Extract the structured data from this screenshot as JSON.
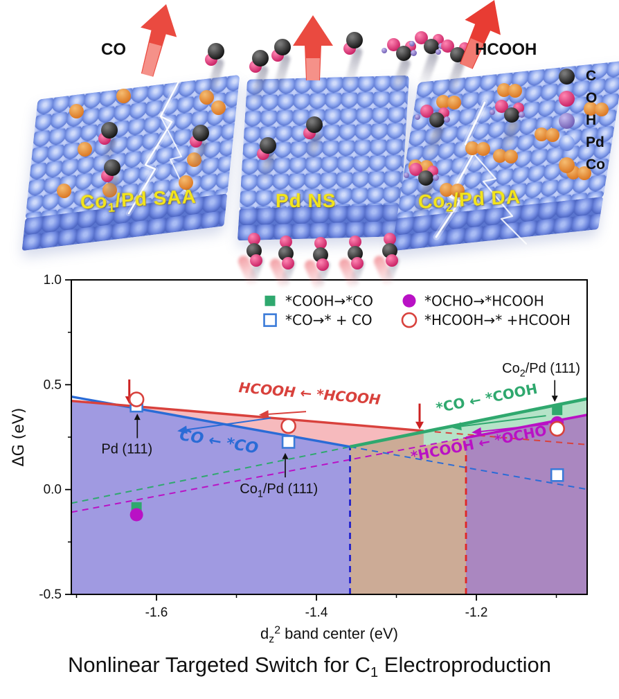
{
  "illustration": {
    "product_left": "CO",
    "product_right": "HCOOH",
    "slabs": [
      {
        "parts": [
          {
            "t": "Co"
          },
          {
            "t": "1",
            "sub": true
          },
          {
            "t": "/Pd SAA"
          }
        ]
      },
      {
        "parts": [
          {
            "t": "Pd NS"
          }
        ]
      },
      {
        "parts": [
          {
            "t": "Co"
          },
          {
            "t": "2",
            "sub": true
          },
          {
            "t": "/Pd DA"
          }
        ]
      }
    ],
    "atom_legend": [
      {
        "symbol": "C",
        "color_class": "atom-C"
      },
      {
        "symbol": "O",
        "color_class": "atom-O"
      },
      {
        "symbol": "H",
        "color_class": "atom-H"
      },
      {
        "symbol": "Pd",
        "color_class": "atom-Pd-legend"
      },
      {
        "symbol": "Co",
        "color_class": "atom-Co"
      }
    ],
    "label_color": "#f2e41c",
    "arrow_color": "#e8473e"
  },
  "chart_data": {
    "type": "line",
    "ylabel": "ΔG (eV)",
    "xlabel_parts": [
      {
        "t": "d"
      },
      {
        "t": "z",
        "sub": true
      },
      {
        "t": "2",
        "sup": true
      },
      {
        "t": " band center (eV)"
      }
    ],
    "xlim": [
      -1.7065,
      -1.0615
    ],
    "ylim": [
      -0.5,
      1.0
    ],
    "x_major_ticks": [
      -1.6,
      -1.4,
      -1.2
    ],
    "x_minor_ticks": [
      -1.7,
      -1.5,
      -1.3,
      -1.1
    ],
    "y_major_ticks": [
      1.0,
      0.5,
      0.0,
      -0.5
    ],
    "y_minor_ticks": [
      0.75,
      0.25,
      -0.25
    ],
    "legend": [
      {
        "marker": "square-filled",
        "color": "#2fa86e",
        "label": "*COOH→*CO"
      },
      {
        "marker": "square-open",
        "color": "#3a7ad8",
        "label": "*CO→* + CO"
      },
      {
        "marker": "circle-filled",
        "color": "#b911c5",
        "label": "*OCHO→*HCOOH"
      },
      {
        "marker": "circle-open",
        "color": "#d8413c",
        "label": "*HCOOH→* +HCOOH"
      }
    ],
    "legend_pos": {
      "col_x": [
        -1.458,
        -1.284
      ],
      "row_y": [
        0.9,
        0.808
      ]
    },
    "regions": [
      {
        "name": "co-selective-region",
        "color": "#a09ae1",
        "points": [
          [
            -1.7065,
            0.423
          ],
          [
            -1.652,
            0.405
          ],
          [
            -1.358,
            0.204
          ],
          [
            -1.358,
            -0.5
          ],
          [
            -1.7065,
            -0.5
          ]
        ]
      },
      {
        "name": "transition-region",
        "color": "#ccab96",
        "points": [
          [
            -1.358,
            0.204
          ],
          [
            -1.266,
            0.275
          ],
          [
            -1.213,
            0.316
          ],
          [
            -1.213,
            -0.5
          ],
          [
            -1.358,
            -0.5
          ]
        ]
      },
      {
        "name": "hcooh-selective-region",
        "color": "#aa87c0",
        "points": [
          [
            -1.213,
            0.247
          ],
          [
            -1.0615,
            0.356
          ],
          [
            -1.0615,
            -0.5
          ],
          [
            -1.213,
            -0.5
          ]
        ]
      },
      {
        "name": "hcooh-energy-region",
        "color": "#f6babd",
        "points": [
          [
            -1.652,
            0.405
          ],
          [
            -1.266,
            0.28
          ],
          [
            -1.358,
            0.204
          ]
        ]
      },
      {
        "name": "cooh-energy-region",
        "color": "#b5e3c8",
        "points": [
          [
            -1.266,
            0.275
          ],
          [
            -1.0615,
            0.433
          ],
          [
            -1.0615,
            0.356
          ],
          [
            -1.213,
            0.247
          ],
          [
            -1.266,
            0.209
          ]
        ]
      }
    ],
    "lines": [
      {
        "name": "co-desorption-line",
        "color": "#2a6bd6",
        "width": 3.4,
        "solid": [
          [
            -1.7065,
            0.443
          ],
          [
            -1.358,
            0.204
          ]
        ],
        "dashed": [
          [
            -1.358,
            0.204
          ],
          [
            -1.0615,
            0.001
          ]
        ]
      },
      {
        "name": "hcooh-desorption-line",
        "color": "#d8413c",
        "width": 3.4,
        "solid": [
          [
            -1.7065,
            0.423
          ],
          [
            -1.266,
            0.28
          ]
        ],
        "dashed": [
          [
            -1.266,
            0.28
          ],
          [
            -1.0615,
            0.214
          ]
        ]
      },
      {
        "name": "cooh-to-co-line",
        "color": "#2fa86e",
        "width": 4.6,
        "solid": [
          [
            -1.358,
            0.204
          ],
          [
            -1.0615,
            0.433
          ]
        ],
        "dashed": [
          [
            -1.7065,
            -0.065
          ],
          [
            -1.358,
            0.204
          ]
        ]
      },
      {
        "name": "ocho-to-hcooh-line",
        "color": "#b911c5",
        "width": 3.6,
        "solid": [
          [
            -1.213,
            0.247
          ],
          [
            -1.0615,
            0.356
          ]
        ],
        "dashed": [
          [
            -1.7065,
            -0.108
          ],
          [
            -1.213,
            0.247
          ]
        ]
      }
    ],
    "vlines": [
      {
        "name": "co-boundary",
        "x": -1.358,
        "top": 0.204,
        "color": "#2020cc"
      },
      {
        "name": "hcooh-boundary",
        "x": -1.213,
        "top": 0.247,
        "color": "#e02525"
      }
    ],
    "points": [
      {
        "series": "*COOH→*CO",
        "marker": "square-filled",
        "color": "#2fa86e",
        "data": [
          [
            -1.625,
            -0.085
          ],
          [
            -1.099,
            0.38
          ]
        ]
      },
      {
        "series": "*OCHO→*HCOOH",
        "marker": "circle-filled",
        "color": "#b911c5",
        "data": [
          [
            -1.625,
            -0.12
          ],
          [
            -1.099,
            0.318
          ]
        ]
      },
      {
        "series": "*CO→* + CO",
        "marker": "square-open",
        "color": "#3a7ad8",
        "data": [
          [
            -1.625,
            0.4
          ],
          [
            -1.435,
            0.227
          ],
          [
            -1.099,
            0.069
          ]
        ]
      },
      {
        "series": "*HCOOH→* +HCOOH",
        "marker": "circle-open",
        "color": "#d8413c",
        "data": [
          [
            -1.625,
            0.43
          ],
          [
            -1.435,
            0.303
          ],
          [
            -1.099,
            0.29
          ]
        ]
      }
    ],
    "point_annotations": [
      {
        "name": "pd-111-label",
        "parts": [
          {
            "t": "Pd (111)"
          }
        ],
        "x": -1.637,
        "y": 0.195,
        "arrow": [
          [
            -1.624,
            0.245
          ],
          [
            -1.624,
            0.362
          ]
        ]
      },
      {
        "name": "co1-pd-111-label",
        "parts": [
          {
            "t": "Co"
          },
          {
            "t": "1",
            "sub": true
          },
          {
            "t": "/Pd (111)"
          }
        ],
        "x": -1.447,
        "y": 0.005,
        "arrow": [
          [
            -1.439,
            0.058
          ],
          [
            -1.439,
            0.175
          ]
        ]
      },
      {
        "name": "co2-pd-111-label",
        "parts": [
          {
            "t": "Co"
          },
          {
            "t": "2",
            "sub": true
          },
          {
            "t": "/Pd (111)"
          }
        ],
        "x": -1.119,
        "y": 0.58,
        "arrow": [
          [
            -1.102,
            0.522
          ],
          [
            -1.102,
            0.418
          ]
        ]
      }
    ],
    "process_arrows": [
      {
        "name": "switch-arrow-left",
        "x": -1.634,
        "from": 0.525,
        "to": 0.408,
        "color": "#cc2222"
      },
      {
        "name": "switch-arrow-right",
        "x": -1.271,
        "from": 0.41,
        "to": 0.287,
        "color": "#cc2222"
      }
    ],
    "flow_labels": [
      {
        "name": "hcooh-release-label",
        "text": "HCOOH ← *HCOOH",
        "color": "#d8413c",
        "x": -1.409,
        "y": 0.435,
        "rot": 5,
        "italic": true,
        "size": 20,
        "arrow": [
          [
            -1.413,
            0.372
          ],
          [
            -1.472,
            0.356
          ]
        ]
      },
      {
        "name": "co-release-label",
        "text": "CO ← *CO",
        "color": "#2a6bd6",
        "x": -1.523,
        "y": 0.205,
        "rot": 10,
        "italic": true,
        "size": 22,
        "arrow": [
          [
            -1.457,
            0.341
          ],
          [
            -1.574,
            0.279
          ]
        ]
      },
      {
        "name": "co-formation-label",
        "text": "*CO ← *COOH",
        "color": "#2fa86e",
        "x": -1.186,
        "y": 0.413,
        "rot": -11,
        "italic": false,
        "size": 20,
        "arrow": [
          [
            -1.113,
            0.352
          ],
          [
            -1.231,
            0.296
          ]
        ]
      },
      {
        "name": "hcooh-formation-label",
        "text": "*HCOOH ← *OCHO",
        "color": "#b911c5",
        "x": -1.196,
        "y": 0.198,
        "rot": -11,
        "italic": false,
        "size": 20,
        "arrow": [
          [
            -1.11,
            0.312
          ],
          [
            -1.206,
            0.272
          ]
        ]
      }
    ]
  },
  "caption": {
    "parts": [
      {
        "t": "Nonlinear Targeted Switch for C"
      },
      {
        "t": "1",
        "sub": true
      },
      {
        "t": " Electroproduction"
      }
    ]
  }
}
